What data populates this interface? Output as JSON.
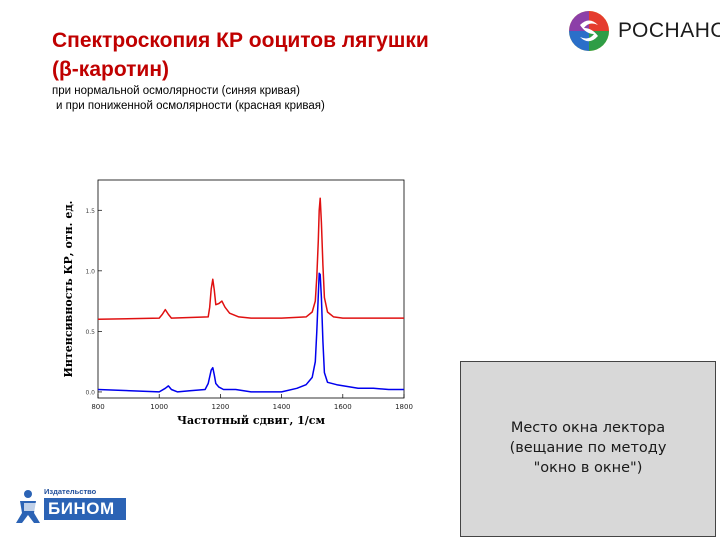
{
  "slide": {
    "title_line1": "Спектроскопия  КР ооцитов  лягушки",
    "title_line2": "(β-каротин)",
    "subtitle_line1": "при нормальной осмолярности (синяя кривая)",
    "subtitle_line2": "и при пониженной осмолярности (красная кривая)"
  },
  "logos": {
    "rosnano": "РОСНАНО",
    "binom_small": "Издательство",
    "binom_word": "БИНОМ"
  },
  "lector_box": {
    "line1": "Место окна лектора",
    "line2": "(вещание по методу",
    "line3": "\"окно в окне\")"
  },
  "colors": {
    "title": "#c00000",
    "series_normal": "#0000ee",
    "series_low": "#e01010"
  },
  "chart_data": {
    "type": "line",
    "xlabel": "Частотный сдвиг, 1/см",
    "ylabel": "Интенсивность КР, отн. ед.",
    "xlim": [
      800,
      1800
    ],
    "ylim": [
      -0.05,
      1.75
    ],
    "x_ticks": [
      "800",
      "1000",
      "1200",
      "1400",
      "1600",
      "1800"
    ],
    "y_ticks": [
      "0.0",
      "0.5",
      "1.0",
      "1.5"
    ],
    "grid": false,
    "series": [
      {
        "color": "#e01010",
        "x": [
          800,
          1000,
          1010,
          1020,
          1030,
          1040,
          1160,
          1165,
          1170,
          1175,
          1180,
          1185,
          1195,
          1205,
          1215,
          1230,
          1260,
          1300,
          1400,
          1480,
          1500,
          1510,
          1515,
          1520,
          1523,
          1526,
          1530,
          1535,
          1540,
          1550,
          1570,
          1600,
          1700,
          1800
        ],
        "y": [
          0.6,
          0.61,
          0.64,
          0.68,
          0.64,
          0.61,
          0.62,
          0.7,
          0.85,
          0.93,
          0.84,
          0.72,
          0.73,
          0.75,
          0.7,
          0.65,
          0.62,
          0.61,
          0.61,
          0.62,
          0.66,
          0.75,
          0.95,
          1.25,
          1.5,
          1.6,
          1.4,
          1.05,
          0.78,
          0.66,
          0.62,
          0.61,
          0.61,
          0.61
        ]
      },
      {
        "color": "#0000ee",
        "x": [
          800,
          1000,
          1020,
          1030,
          1040,
          1060,
          1100,
          1150,
          1160,
          1170,
          1175,
          1180,
          1185,
          1195,
          1210,
          1250,
          1300,
          1350,
          1400,
          1450,
          1480,
          1500,
          1510,
          1515,
          1520,
          1523,
          1526,
          1530,
          1535,
          1540,
          1550,
          1580,
          1650,
          1700,
          1750,
          1800
        ],
        "y": [
          0.02,
          0.0,
          0.03,
          0.05,
          0.02,
          0.0,
          0.01,
          0.02,
          0.07,
          0.18,
          0.2,
          0.14,
          0.07,
          0.04,
          0.02,
          0.02,
          0.0,
          0.0,
          0.0,
          0.03,
          0.06,
          0.12,
          0.25,
          0.5,
          0.8,
          0.98,
          0.97,
          0.78,
          0.42,
          0.16,
          0.08,
          0.06,
          0.03,
          0.03,
          0.02,
          0.02
        ]
      }
    ]
  }
}
